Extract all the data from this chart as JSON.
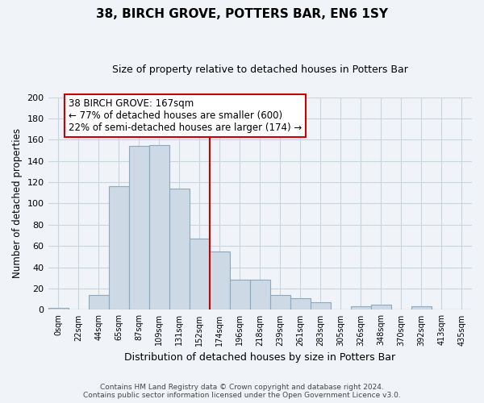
{
  "title": "38, BIRCH GROVE, POTTERS BAR, EN6 1SY",
  "subtitle": "Size of property relative to detached houses in Potters Bar",
  "xlabel": "Distribution of detached houses by size in Potters Bar",
  "ylabel": "Number of detached properties",
  "bin_labels": [
    "0sqm",
    "22sqm",
    "44sqm",
    "65sqm",
    "87sqm",
    "109sqm",
    "131sqm",
    "152sqm",
    "174sqm",
    "196sqm",
    "218sqm",
    "239sqm",
    "261sqm",
    "283sqm",
    "305sqm",
    "326sqm",
    "348sqm",
    "370sqm",
    "392sqm",
    "413sqm",
    "435sqm"
  ],
  "bar_heights": [
    2,
    0,
    14,
    116,
    154,
    155,
    114,
    67,
    55,
    28,
    28,
    14,
    11,
    7,
    0,
    3,
    5,
    0,
    3,
    0,
    0
  ],
  "bar_color": "#cdd9e5",
  "bar_edge_color": "#8baac0",
  "vline_x_index": 8,
  "vline_color": "#cc0000",
  "ylim": [
    0,
    200
  ],
  "yticks": [
    0,
    20,
    40,
    60,
    80,
    100,
    120,
    140,
    160,
    180,
    200
  ],
  "annotation_title": "38 BIRCH GROVE: 167sqm",
  "annotation_line1": "← 77% of detached houses are smaller (600)",
  "annotation_line2": "22% of semi-detached houses are larger (174) →",
  "annotation_box_color": "#ffffff",
  "annotation_box_edge": "#cc0000",
  "footer1": "Contains HM Land Registry data © Crown copyright and database right 2024.",
  "footer2": "Contains public sector information licensed under the Open Government Licence v3.0.",
  "bg_color": "#f0f4f8",
  "plot_bg_color": "#f0f4f8",
  "grid_color": "#c8d4de"
}
